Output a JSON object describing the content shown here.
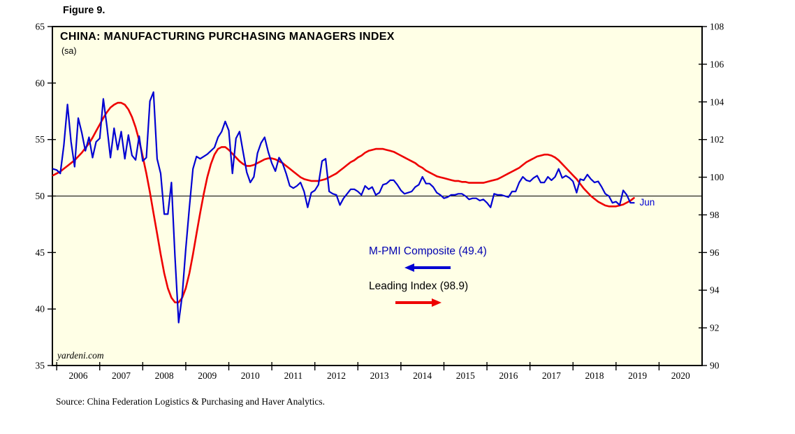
{
  "figure_label": "Figure 9.",
  "chart": {
    "title": "CHINA: MANUFACTURING PURCHASING MANAGERS INDEX",
    "subtitle": "(sa)",
    "watermark": "yardeni.com",
    "end_label": "Jun",
    "source": "Source: China Federation Logistics & Purchasing and Haver Analytics.",
    "legend": [
      {
        "label": "M-PMI Composite (49.4)",
        "text_color": "#0000b0",
        "arrow_color": "#0000d2",
        "arrow_direction": "left"
      },
      {
        "label": "Leading Index (98.9)",
        "text_color": "#000000",
        "arrow_color": "#ee0000",
        "arrow_direction": "right"
      }
    ]
  },
  "chart_data": {
    "type": "line",
    "title": "CHINA: MANUFACTURING PURCHASING MANAGERS INDEX (sa)",
    "grid": false,
    "plot_bg": "#FFFFE6",
    "border_color": "#000000",
    "x_range": [
      2005.9,
      2021.0
    ],
    "x_ticks": [
      2006,
      2007,
      2008,
      2009,
      2010,
      2011,
      2012,
      2013,
      2014,
      2015,
      2016,
      2017,
      2018,
      2019,
      2020
    ],
    "left_axis": {
      "range": [
        35,
        65
      ],
      "ticks": [
        35,
        40,
        45,
        50,
        55,
        60,
        65
      ]
    },
    "right_axis": {
      "range": [
        90,
        108
      ],
      "ticks": [
        90,
        92,
        94,
        96,
        98,
        100,
        102,
        104,
        106,
        108
      ]
    },
    "reference_line_left": 50,
    "latest_point_label": "Jun",
    "series": [
      {
        "id": "mpmi-composite",
        "name": "M-PMI Composite",
        "axis": "left",
        "color": "#0000d2",
        "stroke_width": 2.2,
        "last_value": 49.4,
        "x_start": 2005.9167,
        "x_step": 0.0833333,
        "values": [
          52.4,
          52.3,
          52.0,
          54.5,
          58.1,
          54.8,
          52.6,
          56.9,
          55.6,
          54.0,
          55.2,
          53.4,
          54.8,
          55.1,
          58.6,
          56.2,
          53.4,
          56.0,
          54.1,
          55.7,
          53.3,
          55.4,
          53.6,
          53.2,
          55.3,
          53.1,
          53.4,
          58.4,
          59.2,
          53.3,
          52.0,
          48.4,
          48.4,
          51.2,
          44.6,
          38.8,
          41.2,
          45.3,
          49.0,
          52.4,
          53.5,
          53.3,
          53.5,
          53.7,
          54.0,
          54.3,
          55.2,
          55.7,
          56.6,
          55.8,
          52.0,
          55.1,
          55.7,
          53.9,
          52.1,
          51.2,
          51.7,
          53.8,
          54.7,
          55.2,
          53.9,
          52.9,
          52.2,
          53.4,
          52.9,
          52.0,
          50.9,
          50.7,
          50.9,
          51.2,
          50.4,
          49.0,
          50.3,
          50.5,
          51.0,
          53.1,
          53.3,
          50.4,
          50.2,
          50.1,
          49.2,
          49.8,
          50.2,
          50.6,
          50.6,
          50.4,
          50.1,
          50.9,
          50.6,
          50.8,
          50.1,
          50.3,
          51.0,
          51.1,
          51.4,
          51.4,
          51.0,
          50.5,
          50.2,
          50.3,
          50.4,
          50.8,
          51.0,
          51.7,
          51.1,
          51.1,
          50.8,
          50.3,
          50.1,
          49.8,
          49.9,
          50.1,
          50.1,
          50.2,
          50.2,
          50.0,
          49.7,
          49.8,
          49.8,
          49.6,
          49.7,
          49.4,
          49.0,
          50.2,
          50.1,
          50.1,
          50.0,
          49.9,
          50.4,
          50.4,
          51.2,
          51.7,
          51.4,
          51.3,
          51.6,
          51.8,
          51.2,
          51.2,
          51.7,
          51.4,
          51.7,
          52.4,
          51.6,
          51.8,
          51.6,
          51.3,
          50.3,
          51.5,
          51.4,
          51.9,
          51.5,
          51.2,
          51.3,
          50.8,
          50.2,
          50.0,
          49.4,
          49.5,
          49.2,
          50.5,
          50.1,
          49.4,
          49.4
        ]
      },
      {
        "id": "leading-index",
        "name": "Leading Index",
        "axis": "right",
        "color": "#ee0000",
        "stroke_width": 2.6,
        "last_value": 98.9,
        "x_start": 2005.9167,
        "x_step": 0.0833333,
        "values": [
          100.1,
          100.2,
          100.3,
          100.45,
          100.6,
          100.75,
          100.9,
          101.1,
          101.3,
          101.55,
          101.8,
          102.1,
          102.45,
          102.8,
          103.15,
          103.45,
          103.7,
          103.85,
          103.95,
          103.95,
          103.85,
          103.6,
          103.2,
          102.65,
          101.95,
          101.1,
          100.2,
          99.2,
          98.1,
          97.0,
          95.9,
          94.9,
          94.1,
          93.6,
          93.35,
          93.35,
          93.6,
          94.1,
          94.9,
          95.9,
          97.0,
          98.1,
          99.1,
          100.0,
          100.7,
          101.2,
          101.5,
          101.6,
          101.6,
          101.45,
          101.25,
          101.05,
          100.85,
          100.7,
          100.6,
          100.6,
          100.65,
          100.75,
          100.85,
          100.95,
          101.0,
          101.0,
          100.95,
          100.85,
          100.75,
          100.6,
          100.45,
          100.3,
          100.15,
          100.0,
          99.9,
          99.85,
          99.8,
          99.8,
          99.8,
          99.85,
          99.9,
          100.0,
          100.1,
          100.2,
          100.35,
          100.5,
          100.65,
          100.8,
          100.9,
          101.05,
          101.15,
          101.3,
          101.4,
          101.45,
          101.5,
          101.5,
          101.5,
          101.45,
          101.4,
          101.35,
          101.25,
          101.15,
          101.05,
          100.95,
          100.85,
          100.75,
          100.6,
          100.5,
          100.35,
          100.25,
          100.15,
          100.05,
          100.0,
          99.95,
          99.9,
          99.85,
          99.8,
          99.8,
          99.75,
          99.75,
          99.7,
          99.7,
          99.7,
          99.7,
          99.7,
          99.75,
          99.8,
          99.85,
          99.9,
          100.0,
          100.1,
          100.2,
          100.3,
          100.4,
          100.5,
          100.65,
          100.8,
          100.9,
          101.0,
          101.1,
          101.15,
          101.2,
          101.2,
          101.15,
          101.05,
          100.9,
          100.7,
          100.5,
          100.3,
          100.1,
          99.9,
          99.65,
          99.4,
          99.2,
          99.0,
          98.85,
          98.7,
          98.6,
          98.5,
          98.45,
          98.45,
          98.45,
          98.5,
          98.55,
          98.65,
          98.75,
          98.9
        ]
      }
    ]
  }
}
